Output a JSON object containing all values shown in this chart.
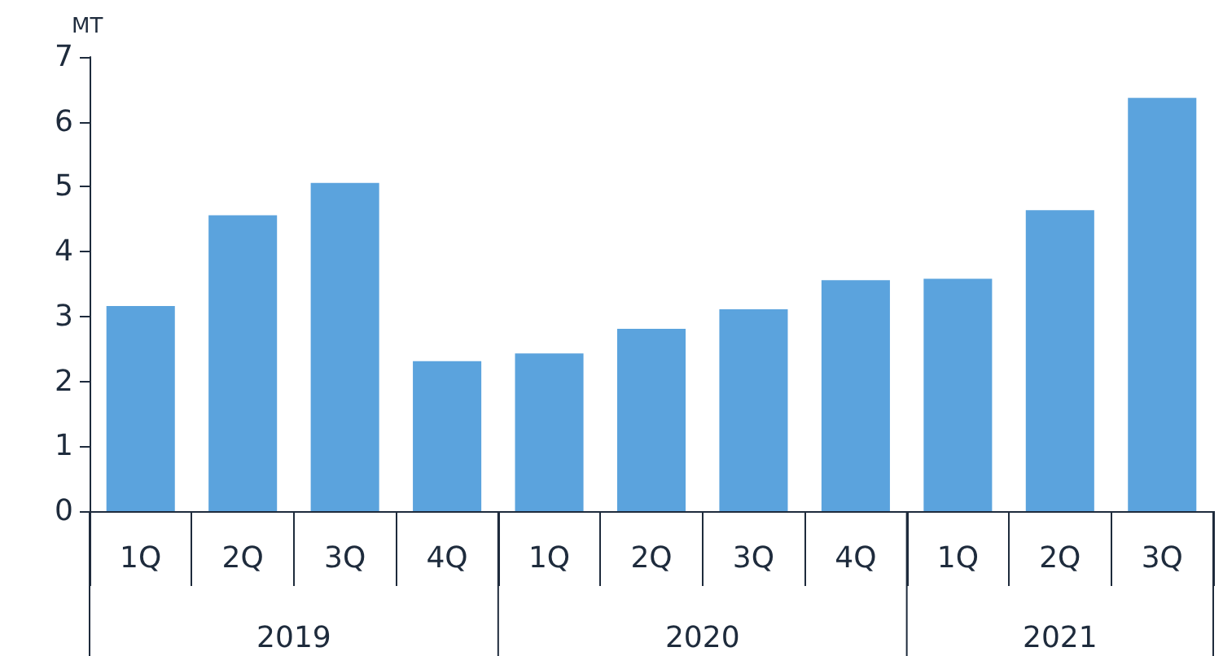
{
  "chart_data": {
    "type": "bar",
    "ylabel": "MT",
    "categories": [
      "1Q",
      "2Q",
      "3Q",
      "4Q",
      "1Q",
      "2Q",
      "3Q",
      "4Q",
      "1Q",
      "2Q",
      "3Q"
    ],
    "values": [
      3.16,
      4.56,
      5.06,
      2.31,
      2.43,
      2.81,
      3.11,
      3.56,
      3.58,
      4.64,
      6.37
    ],
    "color": "#5ba3dd",
    "annotations": [
      "2019",
      "2020",
      "2021"
    ],
    "ylim": [
      0,
      7
    ],
    "yticks": [
      0,
      1,
      2,
      3,
      4,
      5,
      6,
      7
    ],
    "grid": false
  }
}
